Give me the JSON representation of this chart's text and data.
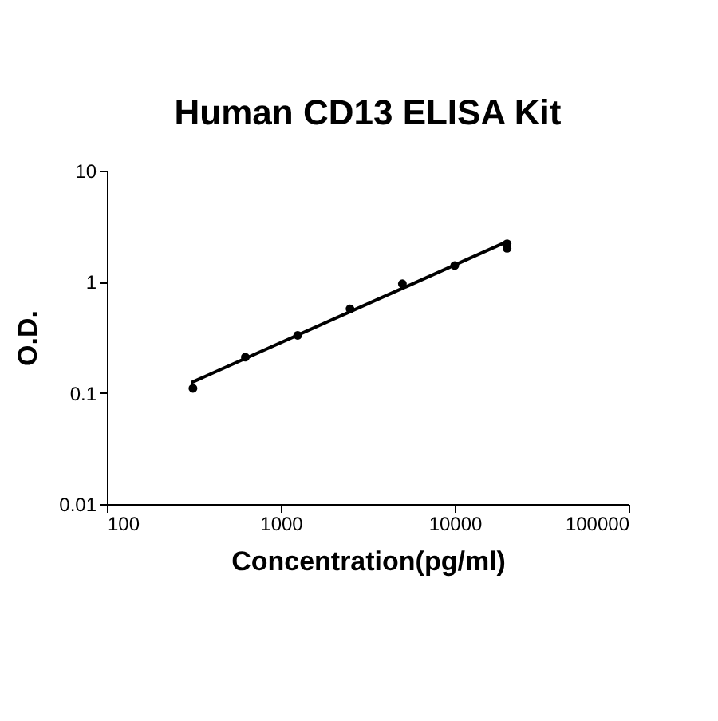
{
  "chart_data": {
    "type": "scatter",
    "title": "Human CD13 ELISA Kit",
    "xlabel": "Concentration(pg/ml)",
    "ylabel": "O.D.",
    "log": "xy",
    "grid": false,
    "xlim": [
      100,
      100000
    ],
    "ylim": [
      0.01,
      10
    ],
    "xticks": [
      100,
      1000,
      10000,
      100000
    ],
    "yticks": [
      0.01,
      0.1,
      1,
      10
    ],
    "series": [
      {
        "color": "#000000",
        "marker": "circle",
        "x": [
          312.5,
          625,
          1250,
          2500,
          5000,
          10000,
          20000,
          20000
        ],
        "values": [
          0.11,
          0.21,
          0.33,
          0.57,
          0.96,
          1.4,
          2.2,
          2.0
        ]
      },
      {
        "type": "line",
        "marker": "none",
        "line_style": "solid",
        "color": "#000000",
        "x": [
          310,
          20000
        ],
        "values": [
          0.125,
          2.3
        ]
      }
    ]
  }
}
